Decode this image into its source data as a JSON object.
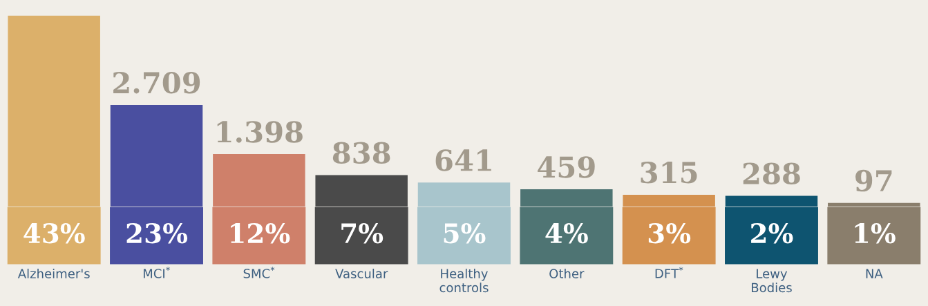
{
  "chart_data": {
    "type": "bar",
    "categories": [
      "Alzheimer's",
      "MCI$^{*}$",
      "SMC$^{*}$",
      "Vascular",
      "Healthy\ncontrols",
      "Other",
      "DFT$^{*}$",
      "Lewy\nBodies",
      "NA"
    ],
    "values": [
      5088,
      2709,
      1398,
      838,
      641,
      459,
      315,
      288,
      97
    ],
    "value_labels": [
      null,
      "2.709",
      "1.398",
      "838",
      "641",
      "459",
      "315",
      "288",
      "97"
    ],
    "colors": [
      "#dcb06a",
      "#4a4fa0",
      "#cf806a",
      "#4a4a4a",
      "#a8c5cc",
      "#4e7473",
      "#d4914f",
      "#0e5470",
      "#8a7e6c"
    ],
    "annotations": [
      "43%",
      "23%",
      "12%",
      "7%",
      "5%",
      "4%",
      "3%",
      "2%",
      "1%"
    ],
    "grid": false,
    "legend": false,
    "tick_labels": "x"
  }
}
